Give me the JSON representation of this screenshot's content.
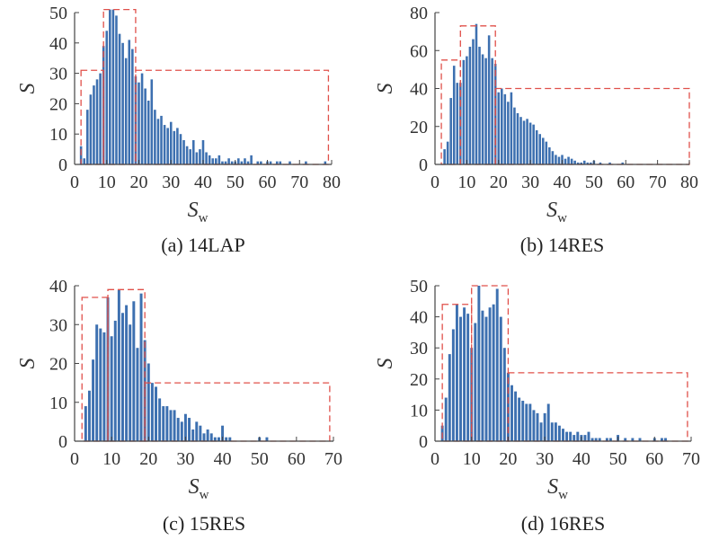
{
  "colors": {
    "bar": "#3d70b0",
    "region": "#e0504a",
    "axis": "#444444"
  },
  "chart_data": [
    {
      "type": "bar",
      "caption": "(a) 14LAP",
      "xlabel": "S",
      "xlabel_sub": "w",
      "ylabel": "S",
      "xlim": [
        0,
        80
      ],
      "ylim": [
        0,
        50
      ],
      "xticks": [
        0,
        10,
        20,
        30,
        40,
        50,
        60,
        70,
        80
      ],
      "yticks": [
        0,
        10,
        20,
        30,
        40,
        50
      ],
      "x": [
        1,
        2,
        3,
        4,
        5,
        6,
        7,
        8,
        9,
        10,
        11,
        12,
        13,
        14,
        15,
        16,
        17,
        18,
        19,
        20,
        21,
        22,
        23,
        24,
        25,
        26,
        27,
        28,
        29,
        30,
        31,
        32,
        33,
        34,
        35,
        36,
        37,
        38,
        39,
        40,
        41,
        42,
        43,
        44,
        45,
        46,
        47,
        48,
        49,
        50,
        51,
        52,
        53,
        54,
        55,
        56,
        57,
        58,
        59,
        60,
        61,
        62,
        63,
        64,
        65,
        66,
        67,
        68,
        69,
        70,
        71,
        72,
        73,
        74,
        75,
        76,
        77,
        78,
        79
      ],
      "values": [
        0,
        6,
        2,
        18,
        23,
        26,
        28,
        30,
        39,
        44,
        51,
        51,
        49,
        43,
        40,
        35,
        41,
        38,
        29,
        27,
        30,
        25,
        21,
        28,
        18,
        15,
        16,
        13,
        12,
        14,
        11,
        12,
        10,
        8,
        6,
        5,
        8,
        4,
        5,
        8,
        4,
        3,
        2,
        2,
        3,
        1,
        1,
        2,
        1,
        1,
        2,
        1,
        2,
        1,
        3,
        0,
        1,
        1,
        0,
        1,
        1,
        0,
        1,
        1,
        0,
        0,
        1,
        0,
        0,
        0,
        0,
        1,
        0,
        0,
        0,
        0,
        0,
        1,
        0
      ],
      "regions": [
        {
          "x": [
            2,
            9
          ],
          "y_top": 31
        },
        {
          "x": [
            9,
            19
          ],
          "y_top": 51
        },
        {
          "x": [
            19,
            79
          ],
          "y_top": 31
        }
      ]
    },
    {
      "type": "bar",
      "caption": "(b) 14RES",
      "xlabel": "S",
      "xlabel_sub": "w",
      "ylabel": "S",
      "xlim": [
        0,
        80
      ],
      "ylim": [
        0,
        80
      ],
      "xticks": [
        0,
        10,
        20,
        30,
        40,
        50,
        60,
        70,
        80
      ],
      "yticks": [
        0,
        20,
        40,
        60,
        80
      ],
      "x": [
        1,
        2,
        3,
        4,
        5,
        6,
        7,
        8,
        9,
        10,
        11,
        12,
        13,
        14,
        15,
        16,
        17,
        18,
        19,
        20,
        21,
        22,
        23,
        24,
        25,
        26,
        27,
        28,
        29,
        30,
        31,
        32,
        33,
        34,
        35,
        36,
        37,
        38,
        39,
        40,
        41,
        42,
        43,
        44,
        45,
        46,
        47,
        48,
        49,
        50,
        51,
        52,
        53,
        54,
        55,
        56,
        57,
        58,
        59,
        60,
        61,
        62,
        63,
        64,
        65,
        66,
        67,
        68,
        69,
        70,
        71,
        72,
        73,
        74,
        75,
        76,
        77,
        78,
        79
      ],
      "values": [
        0,
        0,
        8,
        12,
        35,
        52,
        43,
        43,
        55,
        57,
        62,
        66,
        74,
        62,
        58,
        56,
        68,
        56,
        53,
        38,
        40,
        37,
        33,
        38,
        30,
        27,
        25,
        23,
        24,
        22,
        21,
        18,
        16,
        14,
        12,
        9,
        7,
        5,
        4,
        5,
        3,
        4,
        3,
        2,
        1,
        1,
        2,
        1,
        1,
        2,
        0,
        1,
        0,
        0,
        1,
        0,
        0,
        0,
        1,
        0,
        0,
        0,
        0,
        0,
        0,
        0,
        0,
        0,
        0,
        0,
        0,
        0,
        0,
        0,
        0,
        0,
        0,
        0,
        0
      ],
      "regions": [
        {
          "x": [
            2,
            8
          ],
          "y_top": 55
        },
        {
          "x": [
            8,
            19
          ],
          "y_top": 73
        },
        {
          "x": [
            19,
            80
          ],
          "y_top": 40
        }
      ]
    },
    {
      "type": "bar",
      "caption": "(c) 15RES",
      "xlabel": "S",
      "xlabel_sub": "w",
      "ylabel": "S",
      "xlim": [
        0,
        70
      ],
      "ylim": [
        0,
        40
      ],
      "xticks": [
        0,
        10,
        20,
        30,
        40,
        50,
        60,
        70
      ],
      "yticks": [
        0,
        10,
        20,
        30,
        40
      ],
      "x": [
        1,
        2,
        3,
        4,
        5,
        6,
        7,
        8,
        9,
        10,
        11,
        12,
        13,
        14,
        15,
        16,
        17,
        18,
        19,
        20,
        21,
        22,
        23,
        24,
        25,
        26,
        27,
        28,
        29,
        30,
        31,
        32,
        33,
        34,
        35,
        36,
        37,
        38,
        39,
        40,
        41,
        42,
        43,
        44,
        45,
        46,
        47,
        48,
        49,
        50,
        51,
        52,
        53,
        54,
        55,
        56,
        57,
        58,
        59,
        60,
        61,
        62,
        63,
        64,
        65,
        66,
        67,
        68,
        69
      ],
      "values": [
        0,
        0,
        9,
        13,
        21,
        30,
        29,
        28,
        37,
        27,
        31,
        39,
        33,
        35,
        30,
        36,
        24,
        38,
        26,
        20,
        15,
        14,
        11,
        9,
        9,
        8,
        8,
        6,
        5,
        7,
        6,
        3,
        5,
        4,
        2,
        3,
        2,
        1,
        1,
        4,
        1,
        1,
        0,
        0,
        0,
        0,
        0,
        0,
        0,
        1,
        0,
        1,
        0,
        0,
        0,
        0,
        0,
        0,
        0,
        0,
        0,
        0,
        0,
        0,
        0,
        0,
        0,
        0,
        0
      ],
      "regions": [
        {
          "x": [
            2,
            9
          ],
          "y_top": 37
        },
        {
          "x": [
            9,
            19
          ],
          "y_top": 39
        },
        {
          "x": [
            19,
            69
          ],
          "y_top": 15
        }
      ]
    },
    {
      "type": "bar",
      "caption": "(d) 16RES",
      "xlabel": "S",
      "xlabel_sub": "w",
      "ylabel": "S",
      "xlim": [
        0,
        70
      ],
      "ylim": [
        0,
        50
      ],
      "xticks": [
        0,
        10,
        20,
        30,
        40,
        50,
        60,
        70
      ],
      "yticks": [
        0,
        10,
        20,
        30,
        40,
        50
      ],
      "x": [
        1,
        2,
        3,
        4,
        5,
        6,
        7,
        8,
        9,
        10,
        11,
        12,
        13,
        14,
        15,
        16,
        17,
        18,
        19,
        20,
        21,
        22,
        23,
        24,
        25,
        26,
        27,
        28,
        29,
        30,
        31,
        32,
        33,
        34,
        35,
        36,
        37,
        38,
        39,
        40,
        41,
        42,
        43,
        44,
        45,
        46,
        47,
        48,
        49,
        50,
        51,
        52,
        53,
        54,
        55,
        56,
        57,
        58,
        59,
        60,
        61,
        62,
        63,
        64,
        65,
        66,
        67,
        68,
        69
      ],
      "values": [
        0,
        5,
        14,
        28,
        36,
        44,
        40,
        43,
        41,
        30,
        38,
        50,
        42,
        40,
        43,
        44,
        49,
        40,
        30,
        22,
        18,
        16,
        14,
        13,
        12,
        12,
        10,
        9,
        6,
        9,
        12,
        6,
        6,
        5,
        4,
        3,
        3,
        2,
        3,
        2,
        2,
        3,
        1,
        1,
        1,
        0,
        1,
        1,
        0,
        2,
        0,
        1,
        0,
        1,
        0,
        1,
        0,
        0,
        0,
        1,
        0,
        1,
        1,
        0,
        0,
        0,
        0,
        0,
        0
      ],
      "regions": [
        {
          "x": [
            2,
            10
          ],
          "y_top": 44
        },
        {
          "x": [
            10,
            20
          ],
          "y_top": 50
        },
        {
          "x": [
            20,
            69
          ],
          "y_top": 22
        }
      ]
    }
  ]
}
